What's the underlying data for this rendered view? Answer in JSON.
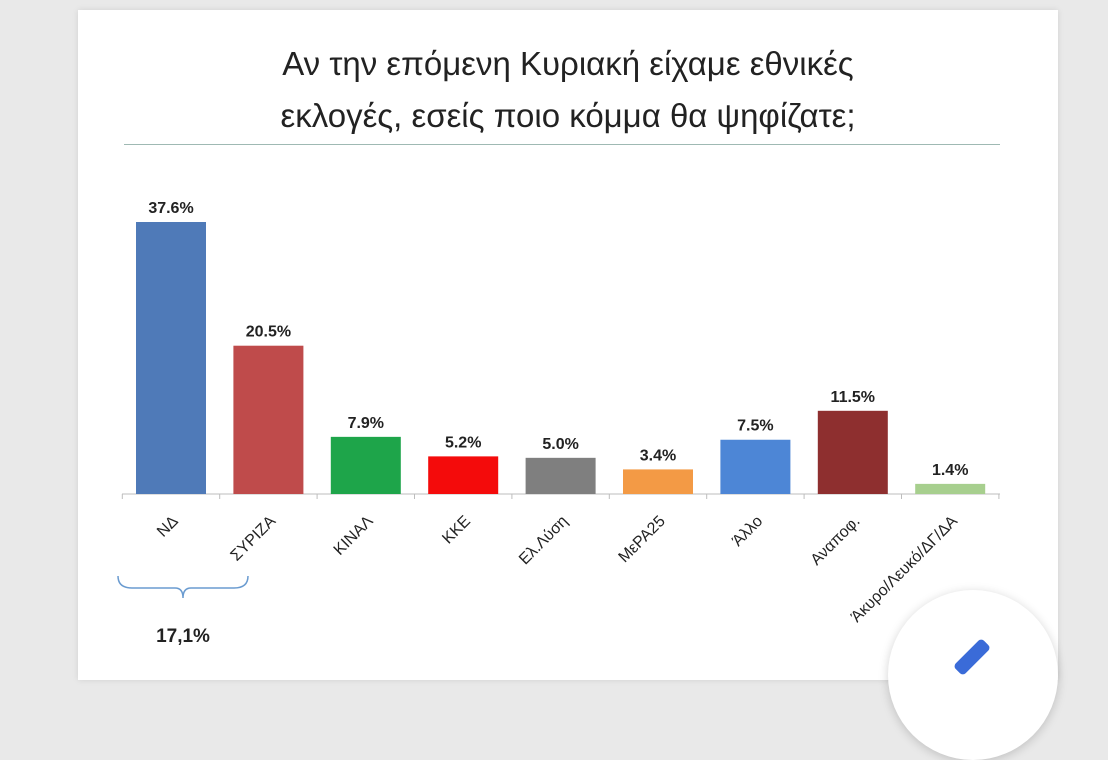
{
  "chart_data": {
    "type": "bar",
    "title_lines": [
      "Αν την επόμενη Κυριακή είχαμε εθνικές",
      "εκλογές, εσείς ποιο κόμμα θα ψηφίζατε;"
    ],
    "categories": [
      "ΝΔ",
      "ΣΥΡΙΖΑ",
      "ΚΙΝΑΛ",
      "ΚΚΕ",
      "Ελ.Λύση",
      "ΜεΡΑ25",
      "Άλλο",
      "Αναποφ.",
      "Άκυρο/Λευκό/ΔΓ/ΔΑ"
    ],
    "values": [
      37.6,
      20.5,
      7.9,
      5.2,
      5.0,
      3.4,
      7.5,
      11.5,
      1.4
    ],
    "value_labels": [
      "37.6%",
      "20.5%",
      "7.9%",
      "5.2%",
      "5.0%",
      "3.4%",
      "7.5%",
      "11.5%",
      "1.4%"
    ],
    "colors": [
      "#4f7ab8",
      "#bf4b4b",
      "#1ea54a",
      "#f40b0b",
      "#7f7f7f",
      "#f39a45",
      "#4d86d6",
      "#8e2f2f",
      "#a7cf8e"
    ],
    "ylim": [
      0,
      40
    ],
    "grid": false,
    "annotation": {
      "text": "17,1%",
      "spans": [
        "ΝΔ",
        "ΣΥΡΙΖΑ"
      ]
    }
  },
  "icons": {
    "fab": "edit-pencil-icon"
  }
}
